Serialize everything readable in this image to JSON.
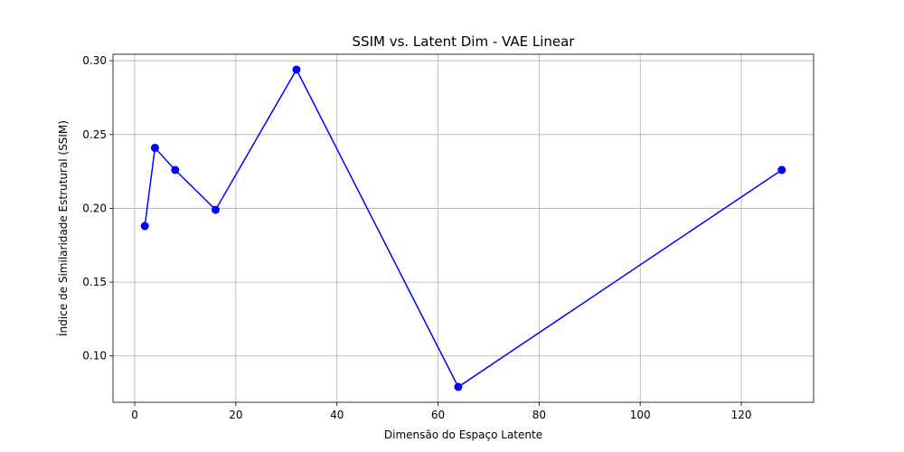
{
  "chart_data": {
    "type": "line",
    "title": "SSIM vs. Latent Dim - VAE Linear",
    "xlabel": "Dimensão do Espaço Latente",
    "ylabel": "Índice de Similaridade Estrutural (SSIM)",
    "xlim": [
      -4.3,
      134.3
    ],
    "ylim": [
      0.0686,
      0.3044
    ],
    "xticks": [
      0,
      20,
      40,
      60,
      80,
      100,
      120
    ],
    "yticks": [
      0.1,
      0.15,
      0.2,
      0.25,
      0.3
    ],
    "xtick_labels": [
      "0",
      "20",
      "40",
      "60",
      "80",
      "100",
      "120"
    ],
    "ytick_labels": [
      "0.10",
      "0.15",
      "0.20",
      "0.25",
      "0.30"
    ],
    "grid": true,
    "series": [
      {
        "color": "#0000ff",
        "marker": "circle",
        "x": [
          2,
          4,
          8,
          16,
          32,
          64,
          128
        ],
        "y": [
          0.188,
          0.241,
          0.226,
          0.199,
          0.294,
          0.079,
          0.226
        ]
      }
    ]
  }
}
